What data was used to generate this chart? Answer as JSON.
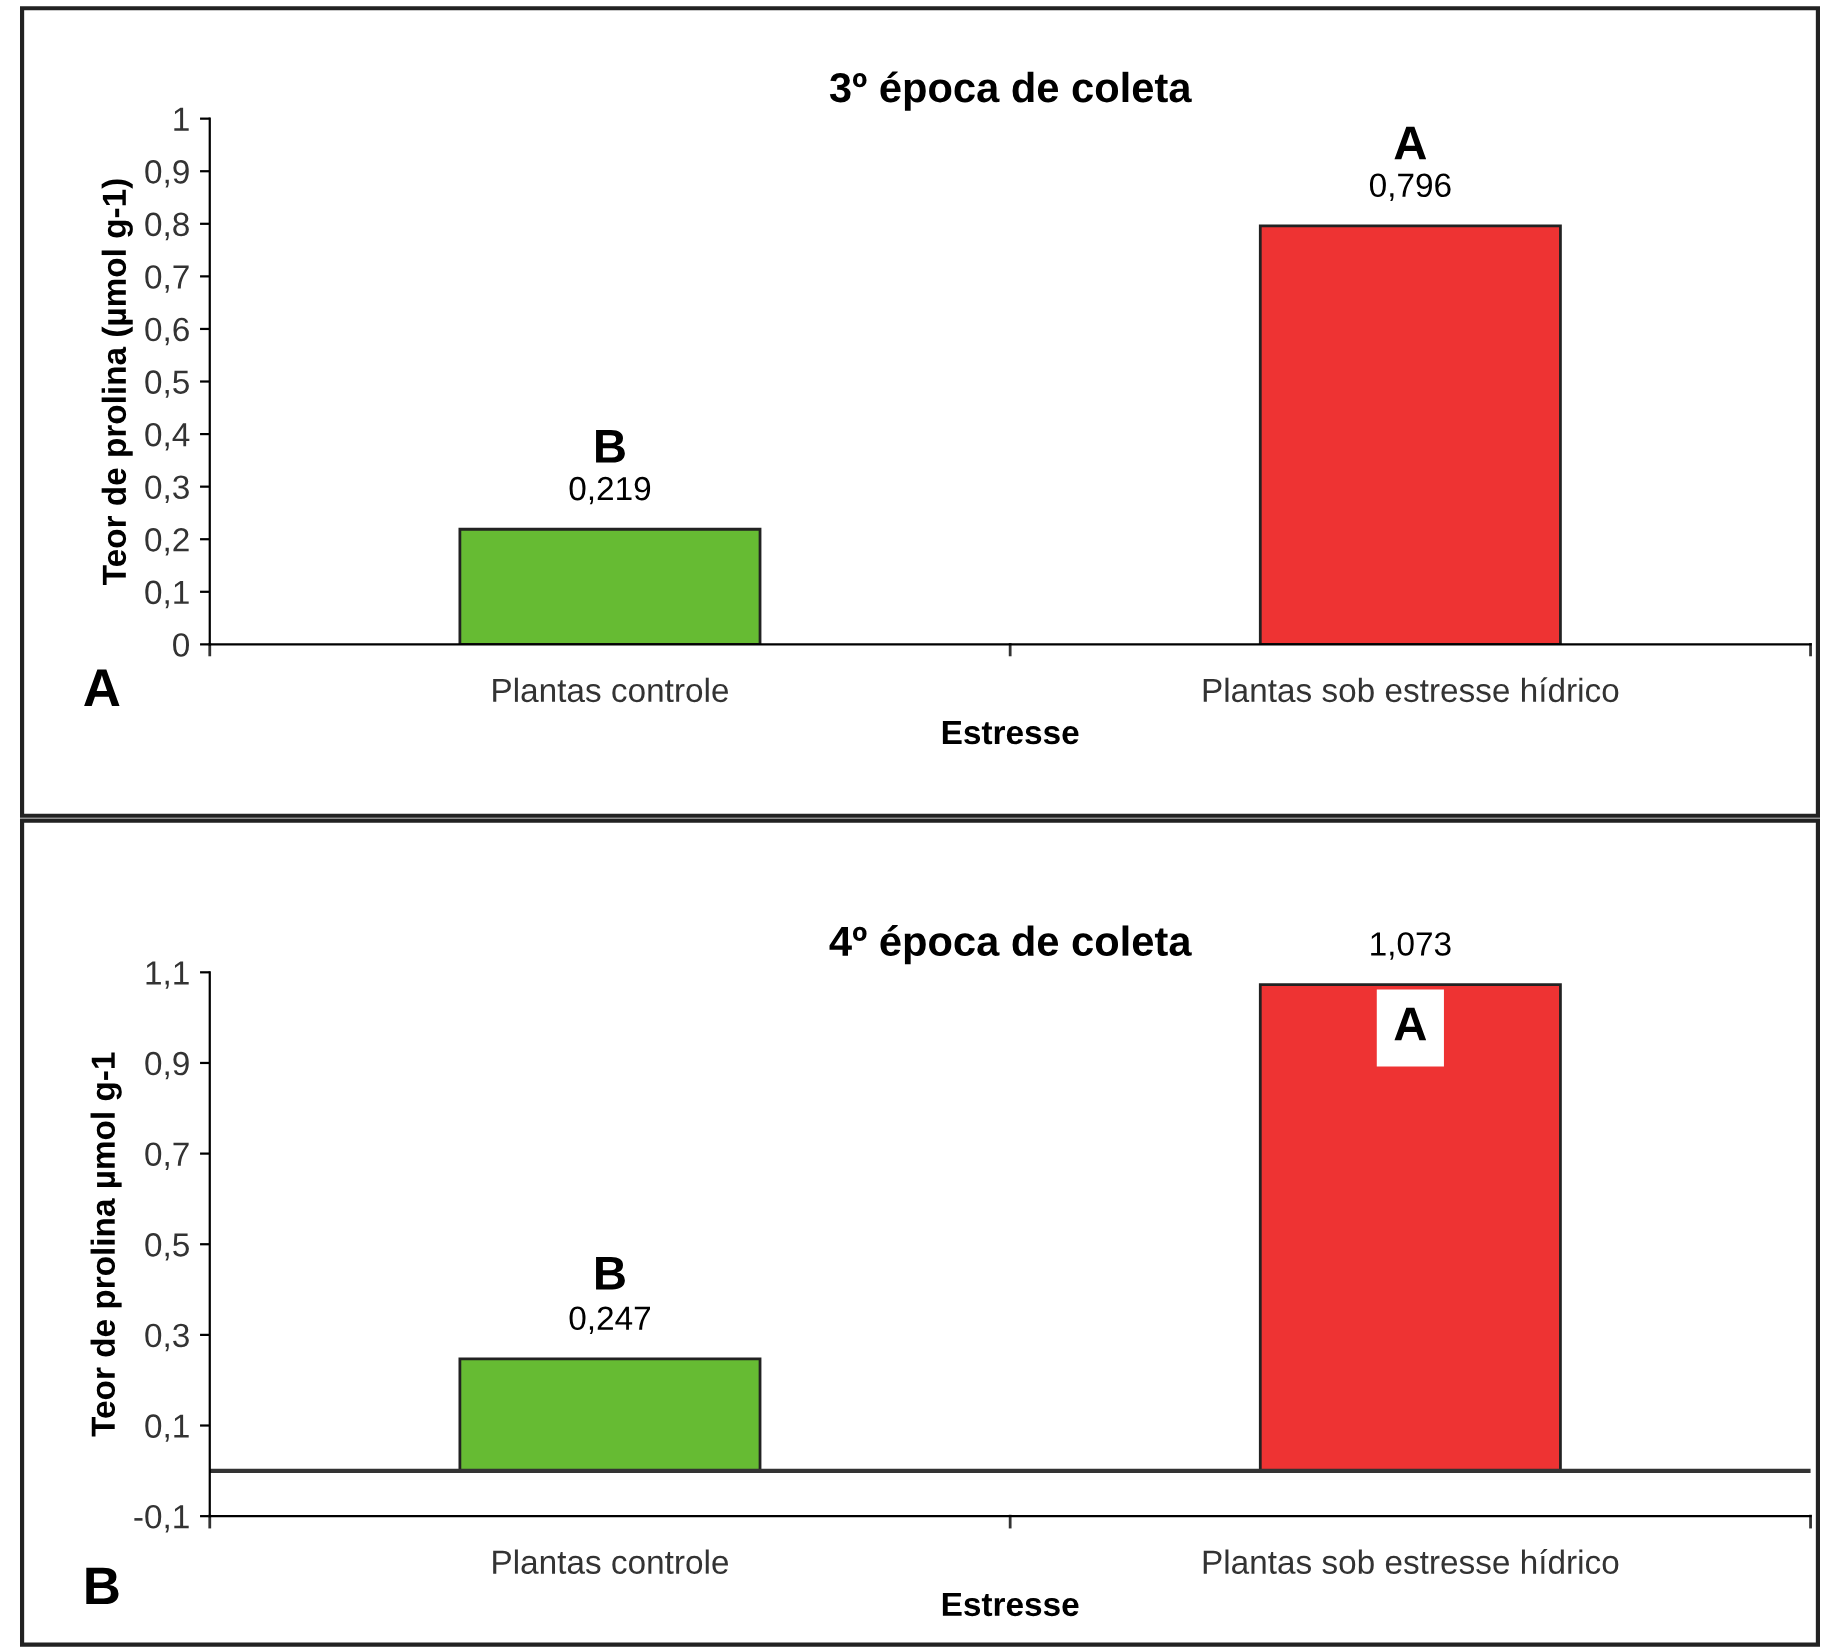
{
  "chart_data": [
    {
      "type": "bar",
      "title": "3º época de coleta",
      "xlabel": "Estresse",
      "ylabel": "Teor de prolina (µmol g-1)",
      "categories": [
        "Plantas controle",
        "Plantas sob estresse hídrico"
      ],
      "values": [
        0.219,
        0.796
      ],
      "colors": [
        "#66bb33",
        "#ee3333"
      ],
      "ylim": [
        0,
        1
      ],
      "yticks": [
        {
          "value": 0,
          "label": "0"
        },
        {
          "value": 0.1,
          "label": "0,1"
        },
        {
          "value": 0.2,
          "label": "0,2"
        },
        {
          "value": 0.3,
          "label": "0,3"
        },
        {
          "value": 0.4,
          "label": "0,4"
        },
        {
          "value": 0.5,
          "label": "0,5"
        },
        {
          "value": 0.6,
          "label": "0,6"
        },
        {
          "value": 0.7,
          "label": "0,7"
        },
        {
          "value": 0.8,
          "label": "0,8"
        },
        {
          "value": 0.9,
          "label": "0,9"
        },
        {
          "value": 1,
          "label": "1"
        }
      ],
      "value_labels": [
        "0,219",
        "0,796"
      ],
      "grid": false,
      "legend": false,
      "annotations": [
        "B",
        "A",
        "A"
      ]
    },
    {
      "type": "bar",
      "title": "4º época de coleta",
      "xlabel": "Estresse",
      "ylabel": "Teor de prolina µmol g-1",
      "categories": [
        "Plantas controle",
        "Plantas sob estresse hídrico"
      ],
      "values": [
        0.247,
        1.073
      ],
      "colors": [
        "#66bb33",
        "#ee3333"
      ],
      "ylim": [
        -0.1,
        1.1
      ],
      "yticks": [
        {
          "value": -0.1,
          "label": "-0,1"
        },
        {
          "value": 0.1,
          "label": "0,1"
        },
        {
          "value": 0.3,
          "label": "0,3"
        },
        {
          "value": 0.5,
          "label": "0,5"
        },
        {
          "value": 0.7,
          "label": "0,7"
        },
        {
          "value": 0.9,
          "label": "0,9"
        },
        {
          "value": 1.1,
          "label": "1,1"
        }
      ],
      "value_labels": [
        "0,247",
        "1,073"
      ],
      "grid": false,
      "legend": false,
      "ref_lines": [
        {
          "axis": "y",
          "value": 0,
          "color": "#333333"
        }
      ],
      "annotations": [
        "B",
        "A",
        "B"
      ]
    }
  ]
}
